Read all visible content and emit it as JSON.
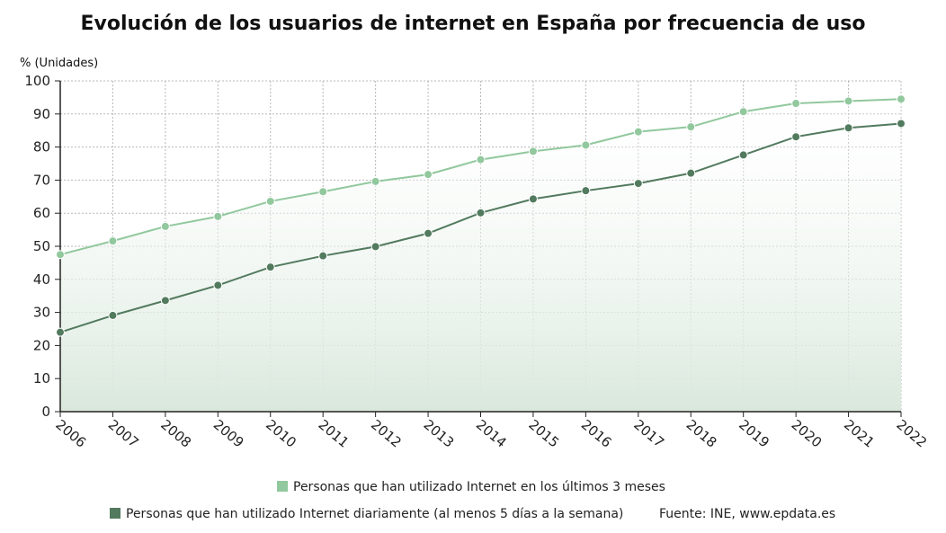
{
  "chart_data": {
    "type": "line",
    "title": "Evolución de los usuarios de internet en España por frecuencia de uso",
    "ylabel": "% (Unidades)",
    "ylim": [
      0,
      100
    ],
    "yticks": [
      "0",
      "10",
      "20",
      "30",
      "40",
      "50",
      "60",
      "70",
      "80",
      "90",
      "100"
    ],
    "categories": [
      "2006",
      "2007",
      "2008",
      "2009",
      "2010",
      "2011",
      "2012",
      "2013",
      "2014",
      "2015",
      "2016",
      "2017",
      "2018",
      "2019",
      "2020",
      "2021",
      "2022"
    ],
    "series": [
      {
        "name": "Personas que han utilizado Internet en los últimos 3 meses",
        "color": "#91c89d",
        "values": [
          47.5,
          51.6,
          56.0,
          59.0,
          63.6,
          66.5,
          69.6,
          71.7,
          76.2,
          78.7,
          80.6,
          84.6,
          86.1,
          90.7,
          93.2,
          93.9,
          94.5
        ]
      },
      {
        "name": "Personas que han utilizado Internet diariamente (al menos 5 días a la semana)",
        "color": "#527a5e",
        "values": [
          24.0,
          29.1,
          33.6,
          38.2,
          43.7,
          47.1,
          49.9,
          53.9,
          60.1,
          64.3,
          66.8,
          69.0,
          72.1,
          77.6,
          83.1,
          85.8,
          87.1
        ]
      }
    ],
    "grid": true,
    "legend_position": "bottom"
  },
  "source": "Fuente: INE, www.epdata.es"
}
